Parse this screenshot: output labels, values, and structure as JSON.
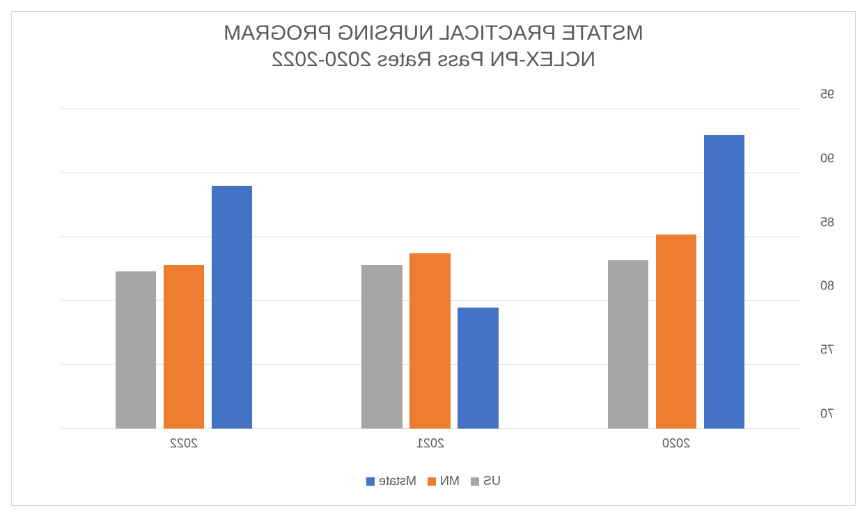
{
  "chart": {
    "type": "bar",
    "mirrored": true,
    "title_line1": "MSTATE PRACTICAL NURSING PROGRAM",
    "title_line2": "NCLEX-PN Pass Rates 2020-2022",
    "title_fontsize": 30,
    "title_color": "#595959",
    "label_fontsize": 18,
    "label_color": "#595959",
    "background_color": "#ffffff",
    "border_color": "#d9d9d9",
    "grid_color": "#d9d9d9",
    "ylim": [
      70,
      95
    ],
    "ytick_step": 5,
    "yticks": [
      70,
      75,
      80,
      85,
      90,
      95
    ],
    "categories": [
      "2020",
      "2021",
      "2022"
    ],
    "series": [
      {
        "name": "Mstate",
        "color": "#4472c4",
        "values": [
          93.0,
          79.5,
          89.0
        ]
      },
      {
        "name": "MN",
        "color": "#ed7d31",
        "values": [
          85.2,
          83.7,
          82.8
        ]
      },
      {
        "name": "US",
        "color": "#a6a6a6",
        "values": [
          83.2,
          82.8,
          82.3
        ]
      }
    ],
    "bar_width_ratio": 0.13,
    "bar_gap_ratio": 0.01,
    "group_width_ratio": 0.62,
    "font_family": "Segoe UI Light, Segoe UI, Arial, sans-serif"
  }
}
